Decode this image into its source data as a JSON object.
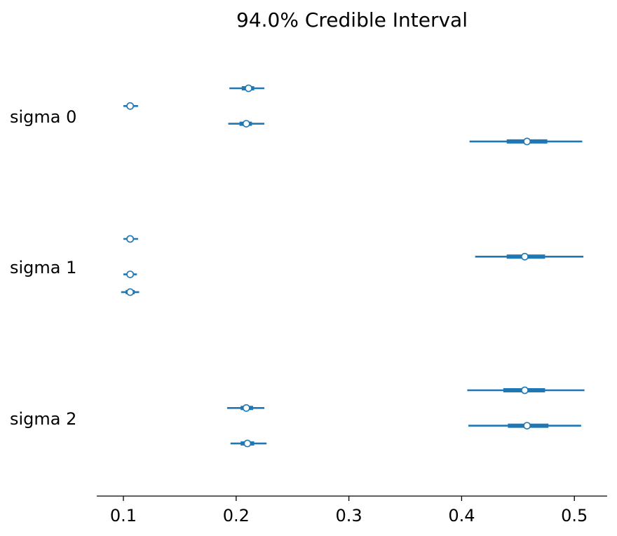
{
  "chart_data": {
    "type": "forest",
    "title": "94.0% Credible Interval",
    "xlim": [
      0.077,
      0.53
    ],
    "xticks": [
      "0.1",
      "0.2",
      "0.3",
      "0.4",
      "0.5"
    ],
    "grid": false,
    "color": "#1f77b4",
    "groups": [
      {
        "label": "sigma 0",
        "chains": [
          {
            "median": 0.211,
            "hdi_low": 0.194,
            "hdi_high": 0.225,
            "iqr_low": 0.205,
            "iqr_high": 0.216
          },
          {
            "median": 0.106,
            "hdi_low": 0.1,
            "hdi_high": 0.113,
            "iqr_low": 0.103,
            "iqr_high": 0.109
          },
          {
            "median": 0.209,
            "hdi_low": 0.193,
            "hdi_high": 0.225,
            "iqr_low": 0.203,
            "iqr_high": 0.214
          },
          {
            "median": 0.458,
            "hdi_low": 0.407,
            "hdi_high": 0.507,
            "iqr_low": 0.44,
            "iqr_high": 0.476
          }
        ]
      },
      {
        "label": "sigma 1",
        "chains": [
          {
            "median": 0.106,
            "hdi_low": 0.1,
            "hdi_high": 0.113,
            "iqr_low": 0.103,
            "iqr_high": 0.109
          },
          {
            "median": 0.456,
            "hdi_low": 0.412,
            "hdi_high": 0.508,
            "iqr_low": 0.44,
            "iqr_high": 0.474
          },
          {
            "median": 0.106,
            "hdi_low": 0.1,
            "hdi_high": 0.112,
            "iqr_low": 0.103,
            "iqr_high": 0.109
          },
          {
            "median": 0.106,
            "hdi_low": 0.098,
            "hdi_high": 0.114,
            "iqr_low": 0.102,
            "iqr_high": 0.11
          }
        ]
      },
      {
        "label": "sigma 2",
        "chains": [
          {
            "median": 0.456,
            "hdi_low": 0.405,
            "hdi_high": 0.509,
            "iqr_low": 0.437,
            "iqr_high": 0.474
          },
          {
            "median": 0.209,
            "hdi_low": 0.192,
            "hdi_high": 0.225,
            "iqr_low": 0.204,
            "iqr_high": 0.215
          },
          {
            "median": 0.458,
            "hdi_low": 0.406,
            "hdi_high": 0.506,
            "iqr_low": 0.441,
            "iqr_high": 0.477
          },
          {
            "median": 0.21,
            "hdi_low": 0.195,
            "hdi_high": 0.227,
            "iqr_low": 0.204,
            "iqr_high": 0.216
          }
        ]
      }
    ]
  }
}
